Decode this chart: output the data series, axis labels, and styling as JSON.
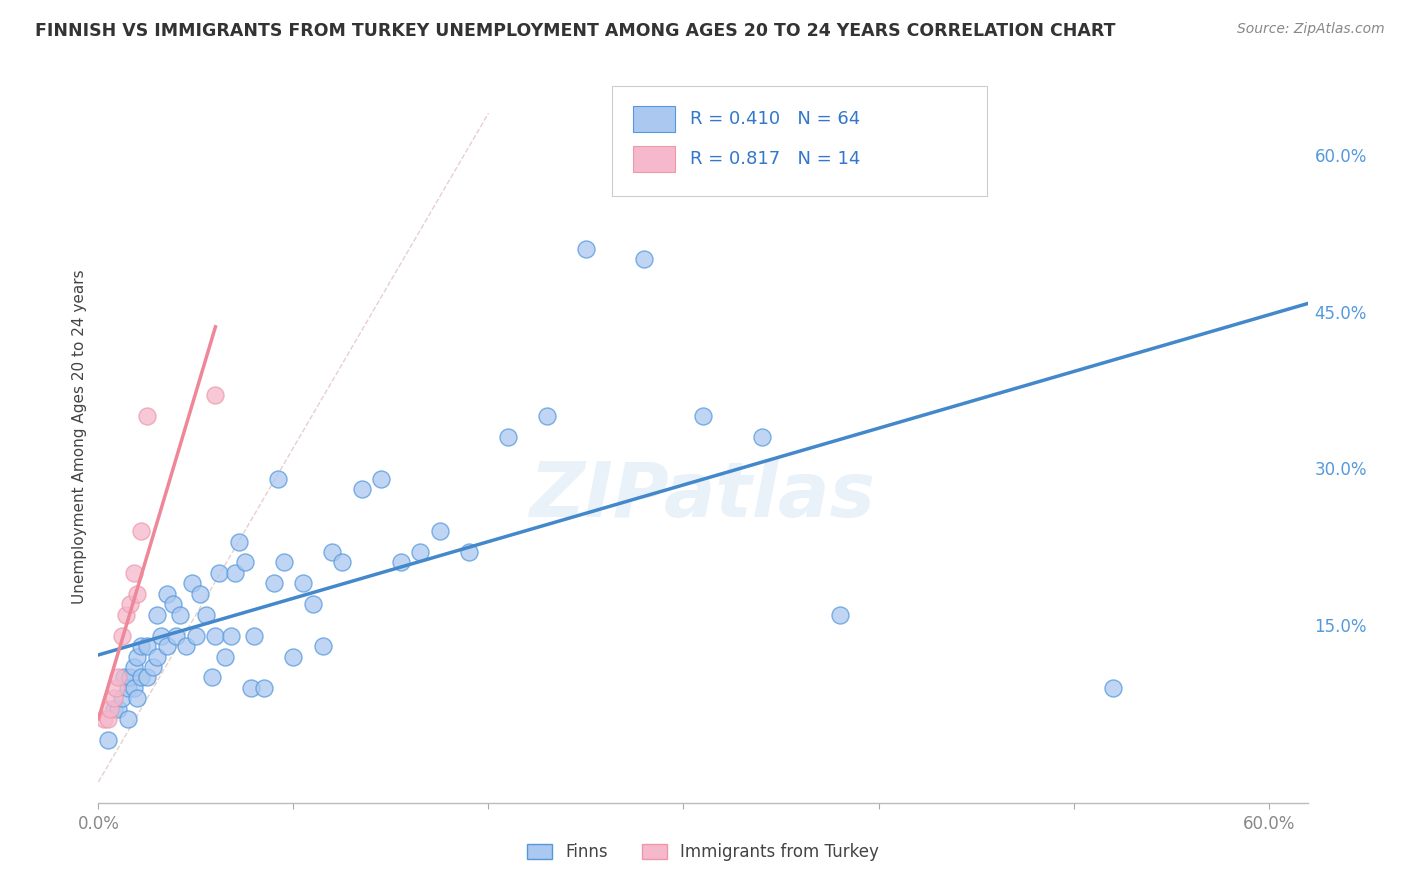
{
  "title": "FINNISH VS IMMIGRANTS FROM TURKEY UNEMPLOYMENT AMONG AGES 20 TO 24 YEARS CORRELATION CHART",
  "source": "Source: ZipAtlas.com",
  "ylabel": "Unemployment Among Ages 20 to 24 years",
  "xlim": [
    0.0,
    0.62
  ],
  "ylim": [
    -0.02,
    0.68
  ],
  "xticks": [
    0.0,
    0.1,
    0.2,
    0.3,
    0.4,
    0.5,
    0.6
  ],
  "yticks_right": [
    0.15,
    0.3,
    0.45,
    0.6
  ],
  "ytick_right_labels": [
    "15.0%",
    "30.0%",
    "45.0%",
    "60.0%"
  ],
  "legend_r1": "0.410",
  "legend_n1": "64",
  "legend_r2": "0.817",
  "legend_n2": "14",
  "finns_color": "#aac8f0",
  "turkey_color": "#f5b8cc",
  "finns_edge_color": "#5599dd",
  "turkey_edge_color": "#ee99aa",
  "finns_line_color": "#4488cc",
  "turkey_line_color": "#ee8899",
  "diag_line_color": "#ddaaaa",
  "watermark": "ZIPatlas",
  "background_color": "#ffffff",
  "finns_x": [
    0.005,
    0.008,
    0.01,
    0.012,
    0.013,
    0.015,
    0.015,
    0.016,
    0.018,
    0.018,
    0.02,
    0.02,
    0.022,
    0.022,
    0.025,
    0.025,
    0.028,
    0.03,
    0.03,
    0.032,
    0.035,
    0.035,
    0.038,
    0.04,
    0.042,
    0.045,
    0.048,
    0.05,
    0.052,
    0.055,
    0.058,
    0.06,
    0.062,
    0.065,
    0.068,
    0.07,
    0.072,
    0.075,
    0.078,
    0.08,
    0.085,
    0.09,
    0.092,
    0.095,
    0.1,
    0.105,
    0.11,
    0.115,
    0.12,
    0.125,
    0.135,
    0.145,
    0.155,
    0.165,
    0.175,
    0.19,
    0.21,
    0.23,
    0.25,
    0.28,
    0.31,
    0.34,
    0.38,
    0.52
  ],
  "finns_y": [
    0.04,
    0.07,
    0.07,
    0.08,
    0.1,
    0.06,
    0.09,
    0.1,
    0.09,
    0.11,
    0.08,
    0.12,
    0.1,
    0.13,
    0.1,
    0.13,
    0.11,
    0.12,
    0.16,
    0.14,
    0.13,
    0.18,
    0.17,
    0.14,
    0.16,
    0.13,
    0.19,
    0.14,
    0.18,
    0.16,
    0.1,
    0.14,
    0.2,
    0.12,
    0.14,
    0.2,
    0.23,
    0.21,
    0.09,
    0.14,
    0.09,
    0.19,
    0.29,
    0.21,
    0.12,
    0.19,
    0.17,
    0.13,
    0.22,
    0.21,
    0.28,
    0.29,
    0.21,
    0.22,
    0.24,
    0.22,
    0.33,
    0.35,
    0.51,
    0.5,
    0.35,
    0.33,
    0.16,
    0.09
  ],
  "turkey_x": [
    0.003,
    0.005,
    0.006,
    0.008,
    0.009,
    0.01,
    0.012,
    0.014,
    0.016,
    0.018,
    0.02,
    0.022,
    0.025,
    0.06
  ],
  "turkey_y": [
    0.06,
    0.06,
    0.07,
    0.08,
    0.09,
    0.1,
    0.14,
    0.16,
    0.17,
    0.2,
    0.18,
    0.24,
    0.35,
    0.37
  ]
}
